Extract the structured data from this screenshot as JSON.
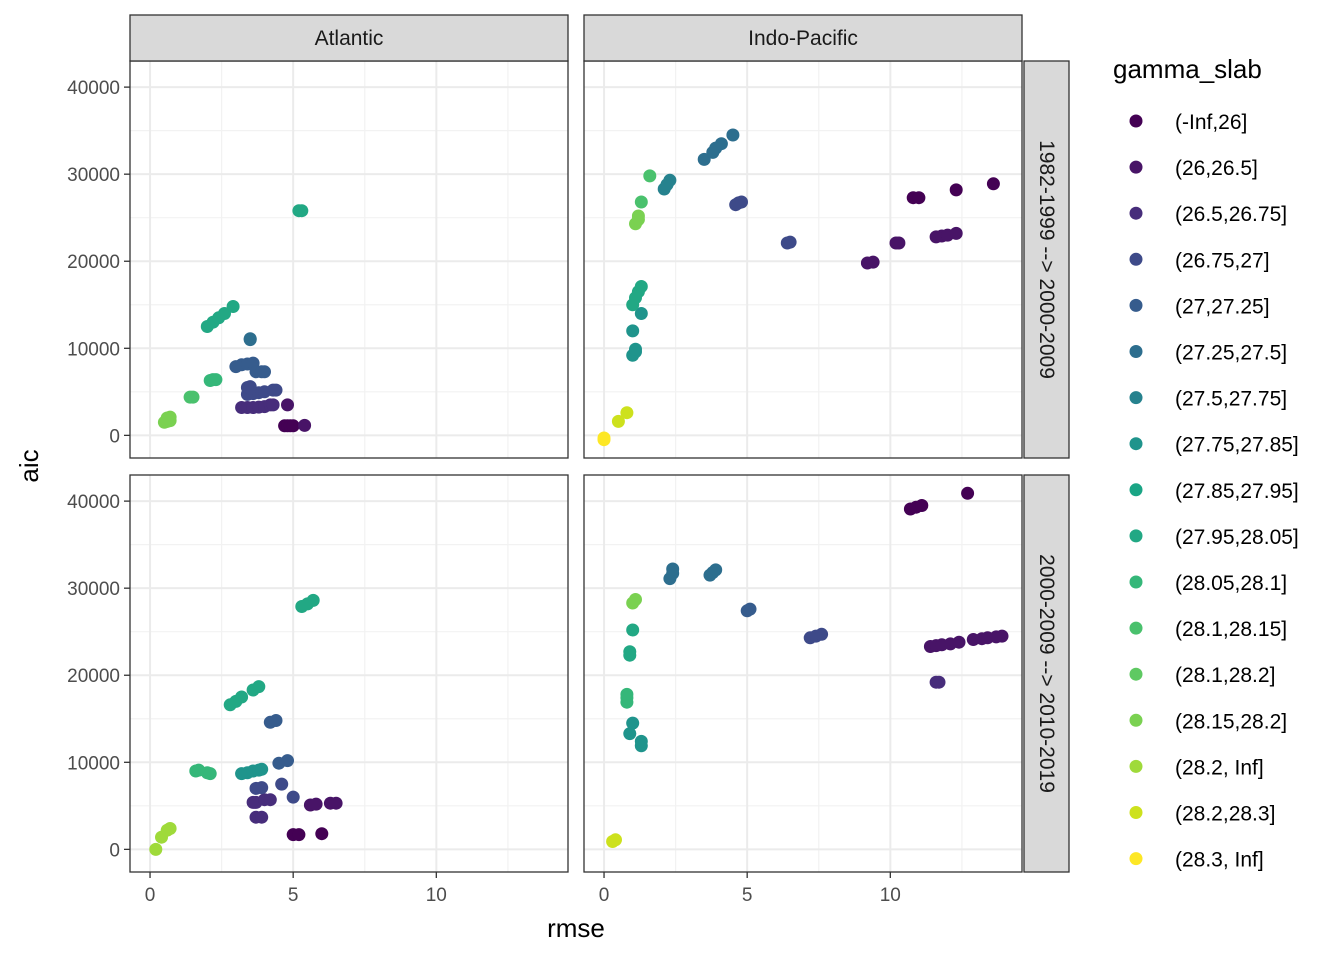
{
  "chart_data": {
    "type": "scatter",
    "xlabel": "rmse",
    "ylabel": "aic",
    "xlim": [
      -0.7,
      14.6
    ],
    "ylim": [
      -2600,
      43000
    ],
    "x_ticks": [
      0,
      5,
      10
    ],
    "y_ticks": [
      0,
      10000,
      20000,
      30000,
      40000
    ],
    "x_tick_labels": [
      "0",
      "5",
      "10"
    ],
    "y_tick_labels": [
      "0",
      "10000",
      "20000",
      "30000",
      "40000"
    ],
    "grid": true,
    "facet_cols": [
      "Atlantic",
      "Indo-Pacific"
    ],
    "facet_rows": [
      "1982-1999 --> 2000-2009",
      "2000-2009 --> 2010-2019"
    ],
    "legend": {
      "title": "gamma_slab",
      "position": "right",
      "entries": [
        {
          "label": "(-Inf,26]",
          "color": "#440154"
        },
        {
          "label": "(26,26.5]",
          "color": "#481467"
        },
        {
          "label": "(26.5,26.75]",
          "color": "#472D7B"
        },
        {
          "label": "(26.75,27]",
          "color": "#3E4A89"
        },
        {
          "label": "(27,27.25]",
          "color": "#365C8D"
        },
        {
          "label": "(27.25,27.5]",
          "color": "#2D6E8E"
        },
        {
          "label": "(27.5,27.75]",
          "color": "#26828E"
        },
        {
          "label": "(27.75,27.85]",
          "color": "#1F948C"
        },
        {
          "label": "(27.85,27.95]",
          "color": "#1AA585"
        },
        {
          "label": "(27.95,28.05]",
          "color": "#22A884"
        },
        {
          "label": "(28.05,28.1]",
          "color": "#35B779"
        },
        {
          "label": "(28.1,28.15]",
          "color": "#4AC16D"
        },
        {
          "label": "(28.1,28.2]",
          "color": "#5EC962"
        },
        {
          "label": "(28.15,28.2]",
          "color": "#7AD151"
        },
        {
          "label": "(28.2, Inf]",
          "color": "#9FDA3A"
        },
        {
          "label": "(28.2,28.3]",
          "color": "#CDE11D"
        },
        {
          "label": "(28.3, Inf]",
          "color": "#FDE725"
        }
      ]
    },
    "panels": [
      {
        "col": "Atlantic",
        "row": "1982-1999 --> 2000-2009",
        "series": [
          {
            "class": "(-Inf,26]",
            "points": [
              [
                4.7,
                1100
              ],
              [
                4.8,
                1100
              ],
              [
                4.9,
                1100
              ],
              [
                5.0,
                1100
              ]
            ]
          },
          {
            "class": "(26,26.5]",
            "points": [
              [
                5.4,
                1150
              ],
              [
                4.8,
                3500
              ]
            ]
          },
          {
            "class": "(26.5,26.75]",
            "points": [
              [
                3.2,
                3200
              ],
              [
                3.4,
                3200
              ],
              [
                3.6,
                3200
              ],
              [
                3.8,
                3250
              ],
              [
                4.0,
                3300
              ],
              [
                4.2,
                3500
              ],
              [
                4.3,
                3500
              ]
            ]
          },
          {
            "class": "(26.75,27]",
            "points": [
              [
                3.4,
                4700
              ],
              [
                3.6,
                4800
              ],
              [
                3.8,
                4900
              ],
              [
                4.0,
                5000
              ],
              [
                4.3,
                5200
              ],
              [
                4.4,
                5200
              ],
              [
                3.4,
                5500
              ],
              [
                3.5,
                5600
              ],
              [
                3.5,
                5400
              ]
            ]
          },
          {
            "class": "(27,27.25]",
            "points": [
              [
                3.0,
                7900
              ],
              [
                3.2,
                8100
              ],
              [
                3.4,
                8200
              ],
              [
                3.6,
                8300
              ],
              [
                3.7,
                7300
              ],
              [
                3.9,
                7300
              ],
              [
                4.0,
                7300
              ]
            ]
          },
          {
            "class": "(27.25,27.5]",
            "points": [
              [
                3.5,
                11000
              ],
              [
                3.5,
                11100
              ]
            ]
          },
          {
            "class": "(27.95,28.05]",
            "points": [
              [
                5.2,
                25800
              ],
              [
                5.3,
                25800
              ],
              [
                2.0,
                12500
              ],
              [
                2.2,
                13000
              ],
              [
                2.4,
                13500
              ],
              [
                2.6,
                14000
              ],
              [
                2.9,
                14800
              ]
            ]
          },
          {
            "class": "(28.05,28.1]",
            "points": [
              [
                2.1,
                6300
              ],
              [
                2.2,
                6400
              ],
              [
                2.3,
                6400
              ]
            ]
          },
          {
            "class": "(28.1,28.15]",
            "points": [
              [
                1.4,
                4400
              ],
              [
                1.5,
                4400
              ]
            ]
          },
          {
            "class": "(28.15,28.2]",
            "points": [
              [
                0.5,
                1500
              ],
              [
                0.6,
                1600
              ],
              [
                0.7,
                1700
              ],
              [
                0.7,
                2100
              ],
              [
                0.6,
                2000
              ]
            ]
          }
        ]
      },
      {
        "col": "Indo-Pacific",
        "row": "1982-1999 --> 2000-2009",
        "series": [
          {
            "class": "(-Inf,26]",
            "points": [
              [
                10.8,
                27300
              ],
              [
                11.0,
                27300
              ],
              [
                12.3,
                28200
              ],
              [
                13.6,
                28900
              ]
            ]
          },
          {
            "class": "(26,26.5]",
            "points": [
              [
                9.2,
                19800
              ],
              [
                9.4,
                19900
              ],
              [
                10.2,
                22100
              ],
              [
                10.3,
                22100
              ],
              [
                11.6,
                22800
              ],
              [
                11.8,
                22900
              ],
              [
                12.0,
                23000
              ],
              [
                12.3,
                23200
              ]
            ]
          },
          {
            "class": "(26.75,27]",
            "points": [
              [
                6.4,
                22100
              ],
              [
                6.5,
                22200
              ],
              [
                4.6,
                26500
              ],
              [
                4.7,
                26700
              ],
              [
                4.8,
                26800
              ]
            ]
          },
          {
            "class": "(27.25,27.5]",
            "points": [
              [
                3.5,
                31700
              ],
              [
                3.8,
                32500
              ],
              [
                3.9,
                33000
              ],
              [
                4.1,
                33500
              ],
              [
                4.5,
                34500
              ]
            ]
          },
          {
            "class": "(27.5,27.75]",
            "points": [
              [
                2.1,
                28300
              ],
              [
                2.2,
                28800
              ],
              [
                2.3,
                29300
              ]
            ]
          },
          {
            "class": "(27.75,27.85]",
            "points": [
              [
                1.0,
                9200
              ],
              [
                1.1,
                9600
              ],
              [
                1.1,
                9900
              ],
              [
                1.0,
                12000
              ],
              [
                1.3,
                14000
              ]
            ]
          },
          {
            "class": "(27.95,28.05]",
            "points": [
              [
                1.0,
                15000
              ],
              [
                1.1,
                15800
              ],
              [
                1.2,
                16500
              ],
              [
                1.3,
                17100
              ]
            ]
          },
          {
            "class": "(28.1,28.15]",
            "points": [
              [
                1.3,
                26800
              ],
              [
                1.6,
                29800
              ]
            ]
          },
          {
            "class": "(28.15,28.2]",
            "points": [
              [
                1.1,
                24300
              ],
              [
                1.2,
                24800
              ],
              [
                1.2,
                25200
              ]
            ]
          },
          {
            "class": "(28.2,28.3]",
            "points": [
              [
                0.5,
                1600
              ],
              [
                0.8,
                2600
              ]
            ]
          },
          {
            "class": "(28.3, Inf]",
            "points": [
              [
                0.0,
                -300
              ],
              [
                0.0,
                -500
              ]
            ]
          }
        ]
      },
      {
        "col": "Atlantic",
        "row": "2000-2009 --> 2010-2019",
        "series": [
          {
            "class": "(-Inf,26]",
            "points": [
              [
                5.0,
                1700
              ],
              [
                5.2,
                1700
              ],
              [
                6.0,
                1800
              ]
            ]
          },
          {
            "class": "(26,26.5]",
            "points": [
              [
                5.6,
                5100
              ],
              [
                5.8,
                5200
              ],
              [
                6.3,
                5300
              ],
              [
                6.5,
                5300
              ]
            ]
          },
          {
            "class": "(26.5,26.75]",
            "points": [
              [
                3.7,
                3700
              ],
              [
                3.9,
                3700
              ],
              [
                3.6,
                5400
              ],
              [
                3.7,
                5400
              ],
              [
                4.0,
                5700
              ],
              [
                4.2,
                5700
              ]
            ]
          },
          {
            "class": "(26.75,27]",
            "points": [
              [
                3.7,
                7000
              ],
              [
                3.9,
                7100
              ],
              [
                4.6,
                7500
              ],
              [
                5.0,
                6000
              ]
            ]
          },
          {
            "class": "(27,27.25]",
            "points": [
              [
                4.2,
                14600
              ],
              [
                4.4,
                14800
              ],
              [
                4.5,
                9900
              ],
              [
                4.8,
                10200
              ]
            ]
          },
          {
            "class": "(27.75,27.85]",
            "points": [
              [
                3.2,
                8700
              ],
              [
                3.4,
                8800
              ],
              [
                3.6,
                9000
              ],
              [
                3.8,
                9100
              ],
              [
                3.9,
                9200
              ]
            ]
          },
          {
            "class": "(27.95,28.05]",
            "points": [
              [
                5.3,
                27900
              ],
              [
                5.5,
                28200
              ],
              [
                5.7,
                28600
              ],
              [
                2.8,
                16600
              ],
              [
                3.0,
                17000
              ],
              [
                3.2,
                17500
              ],
              [
                3.6,
                18300
              ],
              [
                3.8,
                18700
              ]
            ]
          },
          {
            "class": "(28.05,28.1]",
            "points": [
              [
                1.6,
                9000
              ],
              [
                1.7,
                9100
              ],
              [
                2.0,
                8800
              ],
              [
                2.1,
                8700
              ]
            ]
          },
          {
            "class": "(28.2, Inf]",
            "points": [
              [
                0.2,
                0
              ],
              [
                0.4,
                1400
              ],
              [
                0.6,
                2200
              ],
              [
                0.7,
                2400
              ]
            ]
          }
        ]
      },
      {
        "col": "Indo-Pacific",
        "row": "2000-2009 --> 2010-2019",
        "series": [
          {
            "class": "(-Inf,26]",
            "points": [
              [
                10.7,
                39100
              ],
              [
                10.9,
                39300
              ],
              [
                11.1,
                39500
              ],
              [
                12.7,
                40900
              ]
            ]
          },
          {
            "class": "(26,26.5]",
            "points": [
              [
                11.4,
                23300
              ],
              [
                11.6,
                23400
              ],
              [
                11.8,
                23500
              ],
              [
                12.1,
                23600
              ],
              [
                12.4,
                23800
              ],
              [
                12.9,
                24100
              ],
              [
                13.2,
                24200
              ],
              [
                13.4,
                24300
              ],
              [
                13.7,
                24400
              ],
              [
                13.9,
                24500
              ]
            ]
          },
          {
            "class": "(26.5,26.75]",
            "points": [
              [
                11.6,
                19200
              ],
              [
                11.7,
                19200
              ]
            ]
          },
          {
            "class": "(26.75,27]",
            "points": [
              [
                7.2,
                24300
              ],
              [
                7.4,
                24500
              ],
              [
                7.6,
                24700
              ]
            ]
          },
          {
            "class": "(27,27.25]",
            "points": [
              [
                5.0,
                27400
              ],
              [
                5.1,
                27600
              ]
            ]
          },
          {
            "class": "(27.25,27.5]",
            "points": [
              [
                2.3,
                31100
              ],
              [
                2.4,
                31700
              ],
              [
                2.4,
                32200
              ],
              [
                3.7,
                31500
              ],
              [
                3.8,
                31800
              ],
              [
                3.9,
                32100
              ]
            ]
          },
          {
            "class": "(27.75,27.85]",
            "points": [
              [
                0.9,
                13300
              ],
              [
                1.0,
                14500
              ],
              [
                1.3,
                11900
              ],
              [
                1.3,
                12400
              ]
            ]
          },
          {
            "class": "(27.95,28.05]",
            "points": [
              [
                0.9,
                22300
              ],
              [
                0.9,
                22700
              ],
              [
                1.0,
                25200
              ]
            ]
          },
          {
            "class": "(28.05,28.1]",
            "points": [
              [
                0.8,
                16900
              ],
              [
                0.8,
                17400
              ],
              [
                0.8,
                17800
              ]
            ]
          },
          {
            "class": "(28.15,28.2]",
            "points": [
              [
                1.0,
                28300
              ],
              [
                1.1,
                28700
              ]
            ]
          },
          {
            "class": "(28.2,28.3]",
            "points": [
              [
                0.3,
                900
              ],
              [
                0.4,
                1100
              ]
            ]
          }
        ]
      }
    ]
  }
}
